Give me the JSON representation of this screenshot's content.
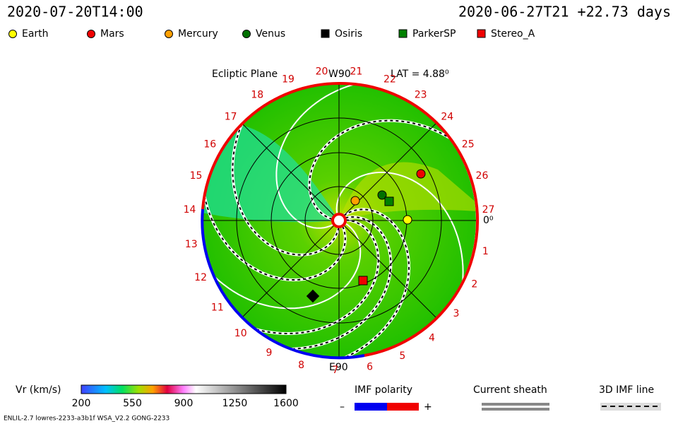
{
  "header": {
    "time": "2020-07-20T14:00",
    "run": "2020-06-27T21 +22.73 days"
  },
  "legend": [
    "Earth",
    "Mars",
    "Mercury",
    "Venus",
    "Osiris",
    "ParkerSP",
    "Stereo_A"
  ],
  "plot": {
    "title": "Ecliptic Plane",
    "top": "W90",
    "lat": "LAT = 4.88⁰",
    "bottom": "E90",
    "zero": "0⁰",
    "angles": [
      "1",
      "2",
      "3",
      "4",
      "5",
      "6",
      "7",
      "8",
      "9",
      "10",
      "11",
      "12",
      "13",
      "14",
      "15",
      "16",
      "17",
      "18",
      "19",
      "20",
      "21",
      "22",
      "23",
      "24",
      "25",
      "26",
      "27"
    ]
  },
  "colorbar": {
    "label": "Vr (km/s)",
    "ticks": [
      200,
      550,
      900,
      1250,
      1600
    ]
  },
  "keys": {
    "imf": "IMF polarity",
    "minus": "–",
    "plus": "+",
    "sheath": "Current sheath",
    "line3d": "3D IMF line"
  },
  "footer": "ENLIL-2.7 lowres-2233-a3b1f WSA_V2.2 GONG-2233"
}
